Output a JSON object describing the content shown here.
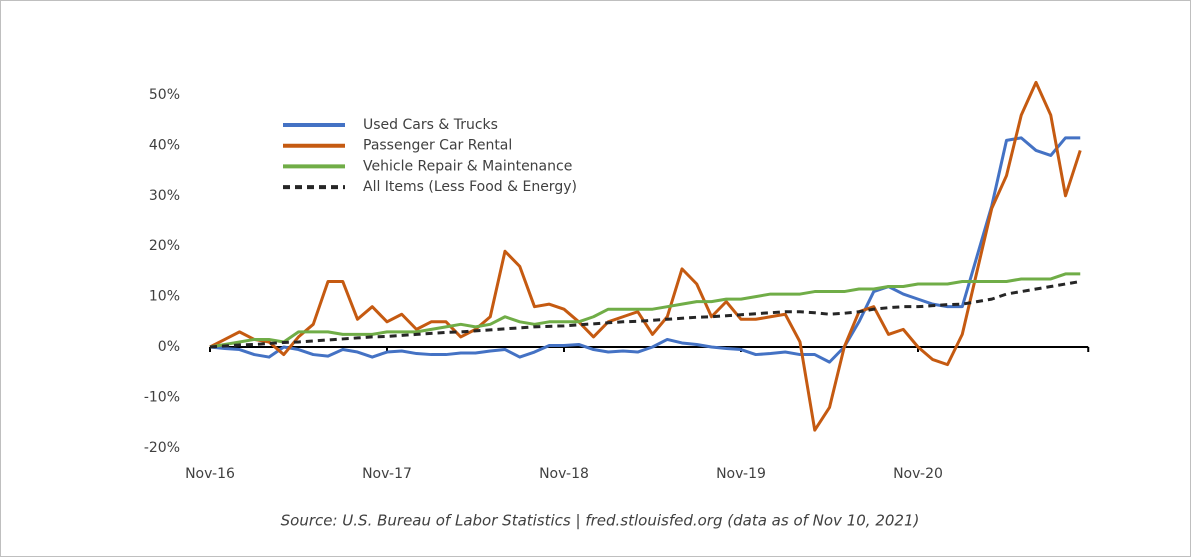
{
  "chart_data": {
    "type": "line",
    "source": "Source: U.S. Bureau of Labor Statistics | fred.stlouisfed.org (data as of Nov 10, 2021)",
    "categories": [
      "Nov-16",
      null,
      null,
      null,
      null,
      null,
      null,
      null,
      null,
      null,
      null,
      null,
      "Nov-17",
      null,
      null,
      null,
      null,
      null,
      null,
      null,
      null,
      null,
      null,
      null,
      "Nov-18",
      null,
      null,
      null,
      null,
      null,
      null,
      null,
      null,
      null,
      null,
      null,
      "Nov-19",
      null,
      null,
      null,
      null,
      null,
      null,
      null,
      null,
      null,
      null,
      null,
      "Nov-20",
      null,
      null,
      null,
      null,
      null,
      null,
      null,
      null,
      null,
      null,
      null
    ],
    "ylim": [
      -20,
      53
    ],
    "yticks": [
      {
        "value": -20,
        "label": "-20%"
      },
      {
        "value": -10,
        "label": "-10%"
      },
      {
        "value": 0,
        "label": "0%"
      },
      {
        "value": 10,
        "label": "10%"
      },
      {
        "value": 20,
        "label": "20%"
      },
      {
        "value": 30,
        "label": "30%"
      },
      {
        "value": 40,
        "label": "40%"
      },
      {
        "value": 50,
        "label": "50%"
      }
    ],
    "legend": "upper left",
    "series": [
      {
        "name": "Used Cars & Trucks",
        "color": "#4472c4",
        "dashed": false,
        "values": [
          0,
          -0.3,
          -0.5,
          -1.5,
          -2,
          0,
          -0.5,
          -1.5,
          -1.8,
          -0.5,
          -1,
          -2,
          -1,
          -0.8,
          -1.3,
          -1.5,
          -1.5,
          -1.2,
          -1.2,
          -0.8,
          -0.5,
          -2,
          -1,
          0.3,
          0.3,
          0.5,
          -0.5,
          -1,
          -0.8,
          -1,
          0,
          1.5,
          0.8,
          0.5,
          0,
          -0.3,
          -0.5,
          -1.5,
          -1.3,
          -1,
          -1.5,
          -1.5,
          -3,
          0,
          5,
          11,
          12,
          10.5,
          9.5,
          8.5,
          8,
          8,
          18,
          28,
          41,
          41.5,
          39,
          38,
          41.5,
          41.5
        ]
      },
      {
        "name": "Passenger Car Rental",
        "color": "#c55a11",
        "dashed": false,
        "values": [
          0,
          1.5,
          3,
          1.5,
          1,
          -1.5,
          2,
          4.5,
          13,
          13,
          5.5,
          8,
          5,
          6.5,
          3.5,
          5,
          5,
          2,
          3.5,
          6,
          19,
          16,
          8,
          8.5,
          7.5,
          5,
          2,
          5,
          6,
          7,
          2.5,
          6,
          15.5,
          12.5,
          6,
          9,
          5.5,
          5.5,
          6,
          6.5,
          1,
          -16.5,
          -12,
          0,
          7,
          8,
          2.5,
          3.5,
          0,
          -2.5,
          -3.5,
          2.5,
          15,
          27.5,
          34,
          46,
          52.5,
          46,
          30,
          39
        ]
      },
      {
        "name": "Vehicle Repair & Maintenance",
        "color": "#70ad47",
        "dashed": false,
        "values": [
          0,
          0.5,
          1,
          1.5,
          1.5,
          1,
          3,
          3,
          3,
          2.5,
          2.5,
          2.5,
          3,
          3,
          3,
          3.5,
          4,
          4.5,
          4,
          4.5,
          6,
          5,
          4.5,
          5,
          5,
          5,
          6,
          7.5,
          7.5,
          7.5,
          7.5,
          8,
          8.5,
          9,
          9,
          9.5,
          9.5,
          10,
          10.5,
          10.5,
          10.5,
          11,
          11,
          11,
          11.5,
          11.5,
          12,
          12,
          12.5,
          12.5,
          12.5,
          13,
          13,
          13,
          13,
          13.5,
          13.5,
          13.5,
          14.5,
          14.5
        ]
      },
      {
        "name": "All Items (Less Food & Energy)",
        "color": "#262626",
        "dashed": true,
        "values": [
          0,
          0.2,
          0.4,
          0.5,
          0.7,
          0.9,
          1,
          1.2,
          1.4,
          1.6,
          1.8,
          2,
          2.1,
          2.3,
          2.5,
          2.7,
          2.9,
          3,
          3.2,
          3.4,
          3.6,
          3.8,
          4,
          4.1,
          4.2,
          4.4,
          4.6,
          4.8,
          5,
          5.1,
          5.3,
          5.5,
          5.7,
          5.9,
          6,
          6.2,
          6.4,
          6.6,
          6.8,
          7,
          7,
          6.8,
          6.5,
          6.7,
          7,
          7.5,
          7.8,
          8,
          8,
          8.2,
          8.4,
          8.5,
          9,
          9.5,
          10.5,
          11,
          11.5,
          12,
          12.5,
          13
        ]
      }
    ]
  }
}
